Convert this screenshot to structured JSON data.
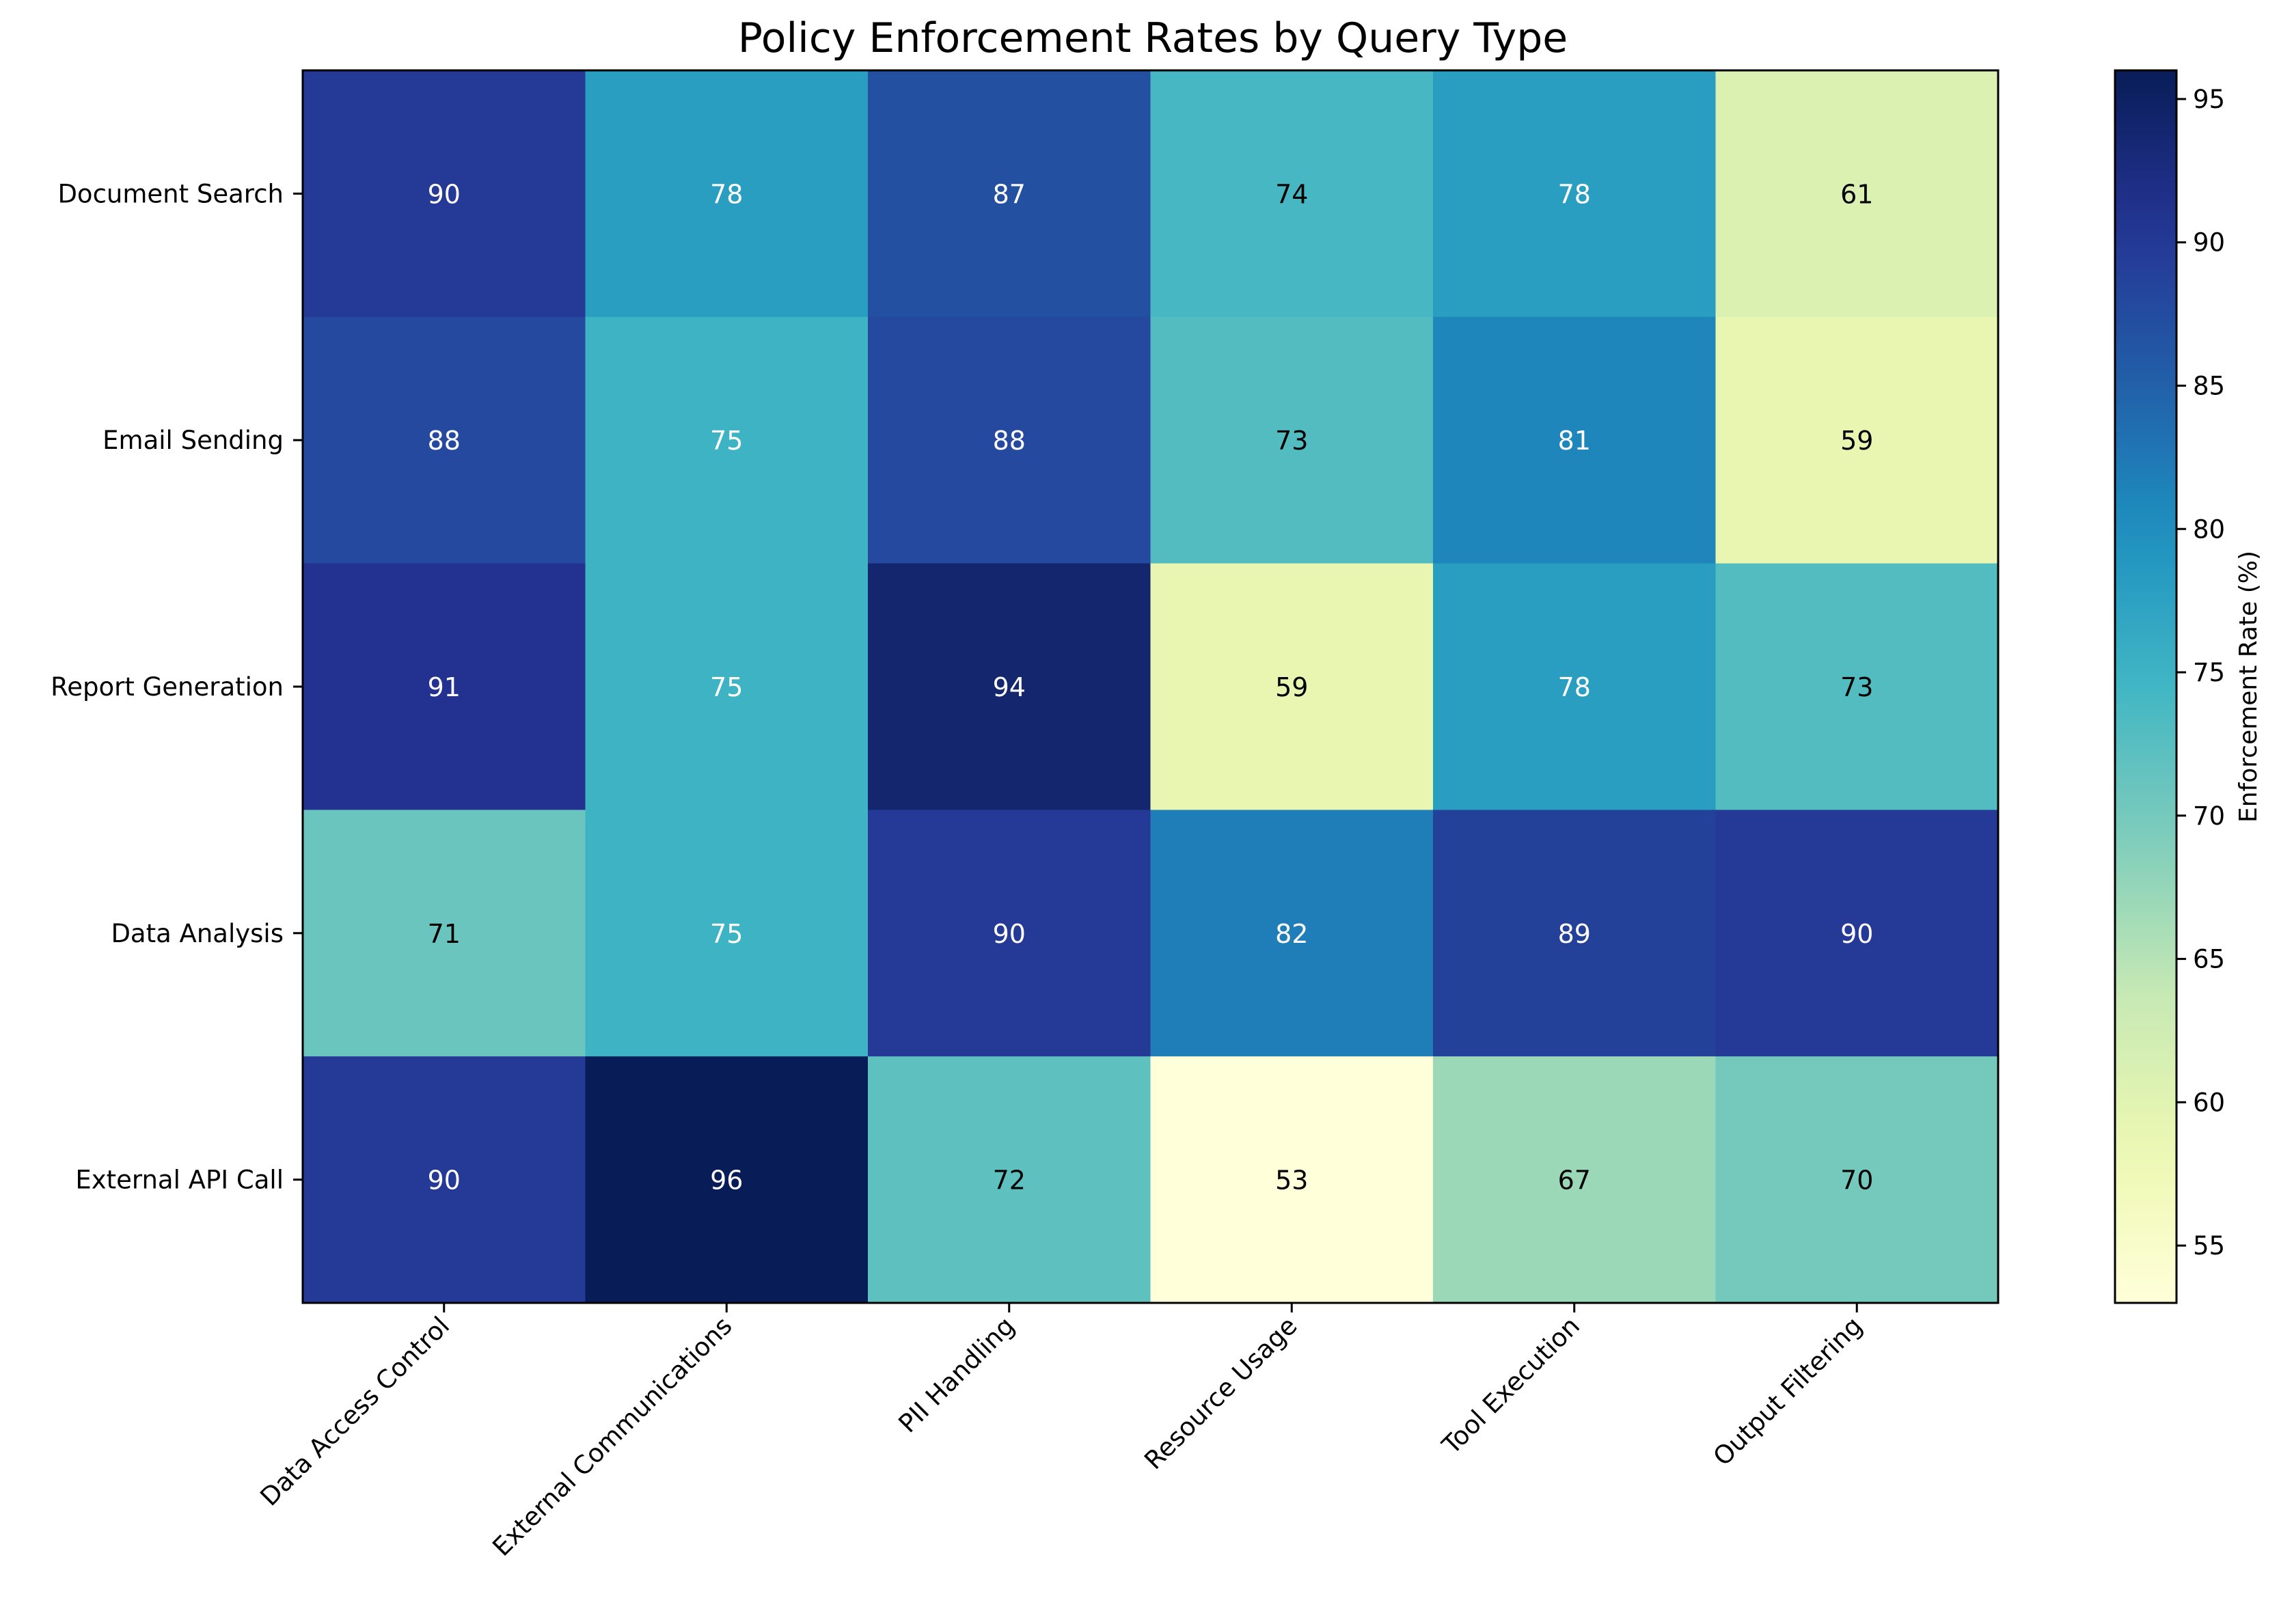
{
  "chart_data": {
    "type": "heatmap",
    "title": "Policy Enforcement Rates by Query Type",
    "xlabel": "",
    "ylabel": "",
    "columns": [
      "Data Access Control",
      "External Communications",
      "PII Handling",
      "Resource Usage",
      "Tool Execution",
      "Output Filtering"
    ],
    "rows": [
      "Document Search",
      "Email Sending",
      "Report Generation",
      "Data Analysis",
      "External API Call"
    ],
    "values": [
      [
        90,
        78,
        87,
        74,
        78,
        61
      ],
      [
        88,
        75,
        88,
        73,
        81,
        59
      ],
      [
        91,
        75,
        94,
        59,
        78,
        73
      ],
      [
        71,
        75,
        90,
        82,
        89,
        90
      ],
      [
        90,
        96,
        72,
        53,
        67,
        70
      ]
    ],
    "colorbar": {
      "label": "Enforcement Rate (%)",
      "min": 53,
      "max": 96,
      "ticks": [
        55,
        60,
        65,
        70,
        75,
        80,
        85,
        90,
        95
      ],
      "colormap": "YlGnBu"
    },
    "grid": false
  }
}
